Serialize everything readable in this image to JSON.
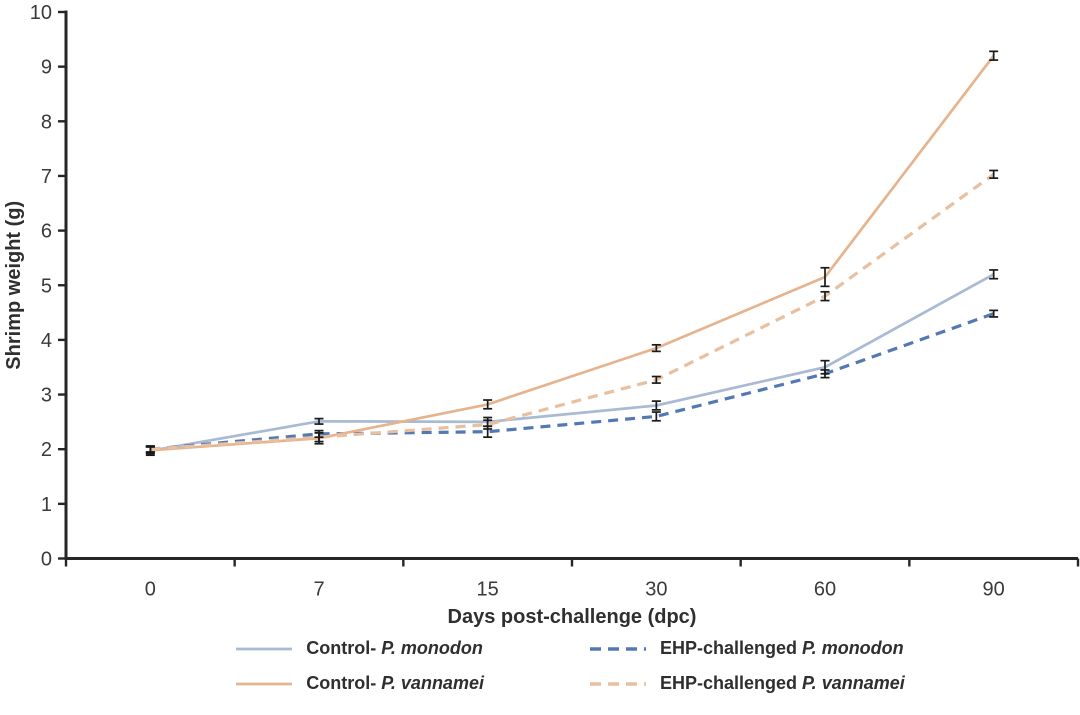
{
  "figure": {
    "background": "#ffffff",
    "axis_color": "#262626",
    "tick_label_color": "#3a3a3a",
    "error_bar_color": "#1a1a1a"
  },
  "chart_data": {
    "type": "line",
    "title": "",
    "xlabel": "Days post-challenge (dpc)",
    "ylabel": "Shrimp weight (g)",
    "x_categories": [
      "0",
      "7",
      "15",
      "30",
      "60",
      "90"
    ],
    "ylim": [
      0,
      10
    ],
    "ytick_interval": 1,
    "yticks": [
      "0",
      "1",
      "2",
      "3",
      "4",
      "5",
      "6",
      "7",
      "8",
      "9",
      "10"
    ],
    "grid": false,
    "error_bars": true,
    "legend_position": "bottom",
    "series": [
      {
        "id": "control-p-monodon",
        "label": "Control- P. monodon",
        "label_prefix": "Control- ",
        "label_species": "P. monodon",
        "line_style": "solid",
        "color": "#a9bad3",
        "values": [
          1.97,
          2.51,
          2.5,
          2.8,
          3.5,
          5.2
        ],
        "errors": [
          0.08,
          0.05,
          0.08,
          0.08,
          0.12,
          0.08
        ]
      },
      {
        "id": "ehp-challenged-p-monodon",
        "label": "EHP-challenged P. monodon",
        "label_prefix": "EHP-challenged ",
        "label_species": "P. monodon",
        "line_style": "dashed",
        "color": "#5379b4",
        "values": [
          2.0,
          2.28,
          2.32,
          2.6,
          3.38,
          4.48
        ],
        "errors": [
          0.06,
          0.06,
          0.1,
          0.08,
          0.07,
          0.06
        ]
      },
      {
        "id": "control-p-vannamei",
        "label": "Control- P. vannamei",
        "label_prefix": "Control- ",
        "label_species": "P. vannamei",
        "line_style": "solid",
        "color": "#e5b48e",
        "values": [
          1.98,
          2.2,
          2.82,
          3.85,
          5.15,
          9.2
        ],
        "errors": [
          0.06,
          0.1,
          0.08,
          0.06,
          0.17,
          0.08
        ]
      },
      {
        "id": "ehp-challenged-p-vannamei",
        "label": "EHP-challenged P. vannamei",
        "label_prefix": "EHP-challenged ",
        "label_species": "P. vannamei",
        "line_style": "dashed",
        "color": "#e8bf9f",
        "values": [
          2.0,
          2.22,
          2.45,
          3.27,
          4.8,
          7.03
        ],
        "errors": [
          0.05,
          0.08,
          0.08,
          0.06,
          0.08,
          0.07
        ]
      }
    ]
  }
}
